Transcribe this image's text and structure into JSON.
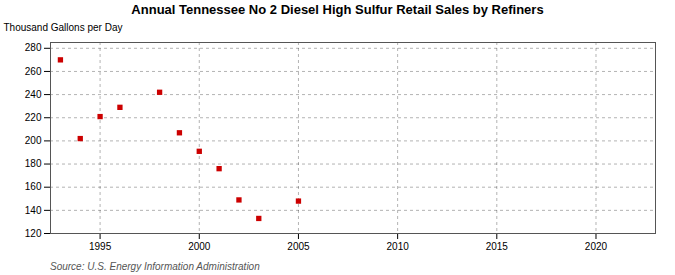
{
  "chart_data": {
    "type": "scatter",
    "title": "Annual Tennessee No 2 Diesel High Sulfur Retail Sales by Refiners",
    "ylabel": "Thousand Gallons per Day",
    "source": "Source: U.S. Energy Information Administration",
    "x": [
      1993,
      1994,
      1995,
      1996,
      1998,
      1999,
      2000,
      2001,
      2002,
      2003,
      2005
    ],
    "values": [
      270,
      202,
      221,
      229,
      242,
      207,
      191,
      176,
      149,
      133,
      148
    ],
    "color": "#cc0000",
    "marker": "square",
    "xlim": [
      1992.5,
      2023
    ],
    "ylim": [
      120,
      285
    ],
    "xticks": [
      1995,
      2000,
      2005,
      2010,
      2015,
      2020
    ],
    "yticks": [
      120,
      140,
      160,
      180,
      200,
      220,
      240,
      260,
      280
    ],
    "grid": true
  }
}
